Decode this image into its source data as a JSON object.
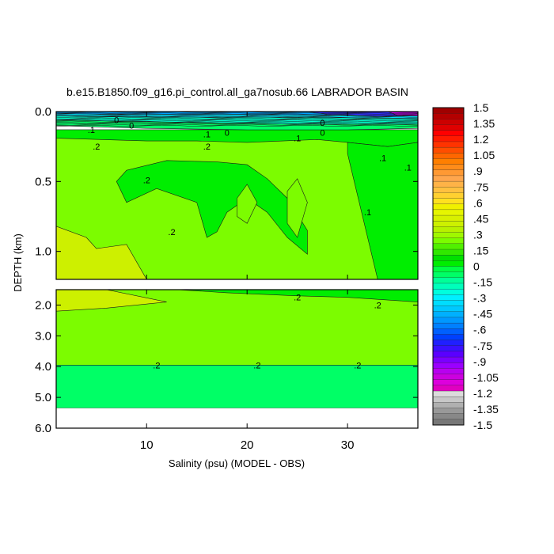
{
  "chart_data": {
    "type": "heatmap",
    "title": "b.e15.B1850.f09_g16.pi_control.all_ga7nosub.66 LABRADOR BASIN",
    "xlabel": "Salinity (psu) (MODEL - OBS)",
    "ylabel": "DEPTH (km)",
    "xlim": [
      1,
      37
    ],
    "x_ticks": [
      "10",
      "20",
      "30"
    ],
    "x_tick_values": [
      10,
      20,
      30
    ],
    "panels": [
      {
        "name": "upper",
        "ylim": [
          0.0,
          1.2
        ],
        "y_ticks": [
          "0.0",
          "0.5",
          "1.0"
        ],
        "y_tick_values": [
          0.0,
          0.5,
          1.0
        ],
        "regions": [
          {
            "color": "#7cfc00",
            "value": 0.2,
            "polygon": [
              [
                1,
                0.13
              ],
              [
                37,
                0.13
              ],
              [
                37,
                1.2
              ],
              [
                1,
                1.2
              ]
            ]
          },
          {
            "color": "#00ee00",
            "value": 0.1,
            "polygon": [
              [
                1,
                0.13
              ],
              [
                37,
                0.13
              ],
              [
                37,
                0.22
              ],
              [
                34,
                0.25
              ],
              [
                30,
                0.22
              ],
              [
                27,
                0.2
              ],
              [
                20,
                0.22
              ],
              [
                15,
                0.21
              ],
              [
                10,
                0.21
              ],
              [
                1,
                0.19
              ]
            ]
          },
          {
            "color": "#00ee00",
            "value": 0.1,
            "polygon": [
              [
                30,
                0.22
              ],
              [
                34,
                0.25
              ],
              [
                37,
                0.22
              ],
              [
                37,
                1.2
              ],
              [
                33,
                1.2
              ],
              [
                31,
                0.6
              ],
              [
                30,
                0.3
              ]
            ]
          },
          {
            "color": "#00ee00",
            "value": 0.1,
            "polygon": [
              [
                8,
                0.42
              ],
              [
                12,
                0.35
              ],
              [
                17,
                0.36
              ],
              [
                20,
                0.38
              ],
              [
                22,
                0.48
              ],
              [
                24,
                0.62
              ],
              [
                26,
                0.85
              ],
              [
                26,
                1.02
              ],
              [
                24,
                0.9
              ],
              [
                22,
                0.72
              ],
              [
                20,
                0.62
              ],
              [
                18,
                0.72
              ],
              [
                17,
                0.86
              ],
              [
                16,
                0.9
              ],
              [
                15,
                0.65
              ],
              [
                11,
                0.55
              ],
              [
                8,
                0.65
              ],
              [
                7,
                0.5
              ]
            ]
          },
          {
            "color": "#7cfc00",
            "value": 0.2,
            "polygon": [
              [
                19,
                0.62
              ],
              [
                20,
                0.52
              ],
              [
                21,
                0.65
              ],
              [
                20,
                0.8
              ],
              [
                19,
                0.75
              ]
            ]
          },
          {
            "color": "#7cfc00",
            "value": 0.2,
            "polygon": [
              [
                24,
                0.57
              ],
              [
                25,
                0.48
              ],
              [
                26,
                0.65
              ],
              [
                25,
                0.9
              ],
              [
                24,
                0.8
              ]
            ]
          },
          {
            "color": "#cdf000",
            "value": 0.3,
            "polygon": [
              [
                1,
                0.82
              ],
              [
                4,
                0.9
              ],
              [
                5,
                0.98
              ],
              [
                8,
                0.95
              ],
              [
                10,
                1.2
              ],
              [
                1,
                1.2
              ]
            ]
          },
          {
            "color": "#00ff66",
            "value": 0.0,
            "polygon": [
              [
                1,
                0.0
              ],
              [
                37,
                0.0
              ],
              [
                37,
                0.12
              ],
              [
                30,
                0.13
              ],
              [
                20,
                0.13
              ],
              [
                10,
                0.12
              ],
              [
                1,
                0.1
              ]
            ]
          },
          {
            "color": "#00ffcc",
            "value": -0.15,
            "polygon": [
              [
                1,
                0.0
              ],
              [
                37,
                0.0
              ],
              [
                37,
                0.09
              ],
              [
                25,
                0.09
              ],
              [
                15,
                0.08
              ],
              [
                1,
                0.06
              ]
            ]
          },
          {
            "color": "#00e6ff",
            "value": -0.3,
            "polygon": [
              [
                1,
                0.0
              ],
              [
                37,
                0.0
              ],
              [
                37,
                0.05
              ],
              [
                25,
                0.04
              ],
              [
                12,
                0.04
              ],
              [
                1,
                0.03
              ]
            ]
          },
          {
            "color": "#00a0ff",
            "value": -0.5,
            "polygon": [
              [
                1,
                0.0
              ],
              [
                37,
                0.0
              ],
              [
                37,
                0.03
              ],
              [
                30,
                0.025
              ],
              [
                20,
                0.02
              ],
              [
                10,
                0.02
              ],
              [
                1,
                0.015
              ]
            ]
          },
          {
            "color": "#3030ff",
            "value": -0.9,
            "polygon": [
              [
                26,
                0.0
              ],
              [
                37,
                0.0
              ],
              [
                37,
                0.03
              ],
              [
                33,
                0.035
              ],
              [
                28,
                0.02
              ]
            ]
          },
          {
            "color": "#cc00ff",
            "value": -1.2,
            "polygon": [
              [
                34,
                0.0
              ],
              [
                37,
                0.0
              ],
              [
                37,
                0.03
              ],
              [
                35,
                0.028
              ]
            ]
          }
        ],
        "contour_labels": [
          {
            "text": "0",
            "x": 7,
            "y": 0.06
          },
          {
            "text": ".1",
            "x": 4.5,
            "y": 0.13
          },
          {
            "text": "0",
            "x": 8.5,
            "y": 0.1
          },
          {
            "text": ".2",
            "x": 5,
            "y": 0.25
          },
          {
            "text": ".1",
            "x": 16,
            "y": 0.16
          },
          {
            "text": ".2",
            "x": 16,
            "y": 0.25
          },
          {
            "text": "0",
            "x": 18,
            "y": 0.15
          },
          {
            "text": "0",
            "x": 27.5,
            "y": 0.08
          },
          {
            "text": ".1",
            "x": 25,
            "y": 0.19
          },
          {
            "text": "0",
            "x": 27.5,
            "y": 0.15
          },
          {
            "text": ".2",
            "x": 10,
            "y": 0.49
          },
          {
            "text": ".2",
            "x": 12.5,
            "y": 0.86
          },
          {
            "text": ".1",
            "x": 33.5,
            "y": 0.33
          },
          {
            "text": ".1",
            "x": 36,
            "y": 0.4
          },
          {
            "text": ".1",
            "x": 32,
            "y": 0.72
          }
        ]
      },
      {
        "name": "lower",
        "ylim": [
          1.5,
          6.0
        ],
        "y_ticks": [
          "2.0",
          "3.0",
          "4.0",
          "5.0",
          "6.0"
        ],
        "y_tick_values": [
          2.0,
          3.0,
          4.0,
          5.0,
          6.0
        ],
        "nodata_below": 5.35,
        "regions": [
          {
            "color": "#7cfc00",
            "value": 0.2,
            "polygon": [
              [
                1,
                1.5
              ],
              [
                37,
                1.5
              ],
              [
                37,
                3.95
              ],
              [
                1,
                3.95
              ]
            ]
          },
          {
            "color": "#cdf000",
            "value": 0.3,
            "polygon": [
              [
                1,
                1.5
              ],
              [
                6,
                1.5
              ],
              [
                12,
                1.9
              ],
              [
                6,
                2.1
              ],
              [
                1,
                2.2
              ]
            ]
          },
          {
            "color": "#00ee00",
            "value": 0.1,
            "polygon": [
              [
                13,
                1.5
              ],
              [
                37,
                1.5
              ],
              [
                37,
                1.9
              ],
              [
                30,
                1.75
              ],
              [
                25,
                1.7
              ],
              [
                18,
                1.6
              ]
            ]
          },
          {
            "color": "#00ff66",
            "value": 0.0,
            "polygon": [
              [
                1,
                3.95
              ],
              [
                37,
                3.95
              ],
              [
                37,
                5.35
              ],
              [
                1,
                5.35
              ]
            ]
          }
        ],
        "contour_labels": [
          {
            "text": ".2",
            "x": 25,
            "y": 1.75
          },
          {
            "text": ".2",
            "x": 33,
            "y": 2.0
          },
          {
            "text": ".2",
            "x": 11,
            "y": 3.95
          },
          {
            "text": ".2",
            "x": 21,
            "y": 3.95
          },
          {
            "text": ".2",
            "x": 31,
            "y": 3.95
          }
        ]
      }
    ],
    "colorbar": {
      "labels": [
        "1.5",
        "1.35",
        "1.2",
        "1.05",
        ".9",
        ".75",
        ".6",
        ".45",
        ".3",
        ".15",
        "0",
        "-.15",
        "-.3",
        "-.45",
        "-.6",
        "-.75",
        "-.9",
        "-1.05",
        "-1.2",
        "-1.35",
        "-1.5"
      ],
      "colors": [
        "#a00000",
        "#b40000",
        "#cc0000",
        "#e00000",
        "#ff0000",
        "#ff1a00",
        "#ff3300",
        "#ff4d00",
        "#ff6600",
        "#ff7f00",
        "#ff8c1a",
        "#ff9933",
        "#ffa64d",
        "#ffb347",
        "#ffc040",
        "#ffd030",
        "#ffe020",
        "#f0f000",
        "#e6f500",
        "#d8f000",
        "#cdf000",
        "#b8f000",
        "#a0f800",
        "#7cfc00",
        "#50f000",
        "#30e800",
        "#00e000",
        "#00ee00",
        "#00ff44",
        "#00ff66",
        "#00ff99",
        "#00ffbb",
        "#00ffdd",
        "#00f0ff",
        "#00ddff",
        "#00c8ff",
        "#00b0ff",
        "#0098ff",
        "#0080ff",
        "#0060ff",
        "#0040ff",
        "#2020ff",
        "#3a10ff",
        "#5a00ff",
        "#7a00ff",
        "#9a00ff",
        "#b800f0",
        "#cc00e0",
        "#dd00dd",
        "#e000c0",
        "#dcdcdc",
        "#c8c8c8",
        "#b0b0b0",
        "#999999",
        "#888888",
        "#777777"
      ]
    }
  }
}
